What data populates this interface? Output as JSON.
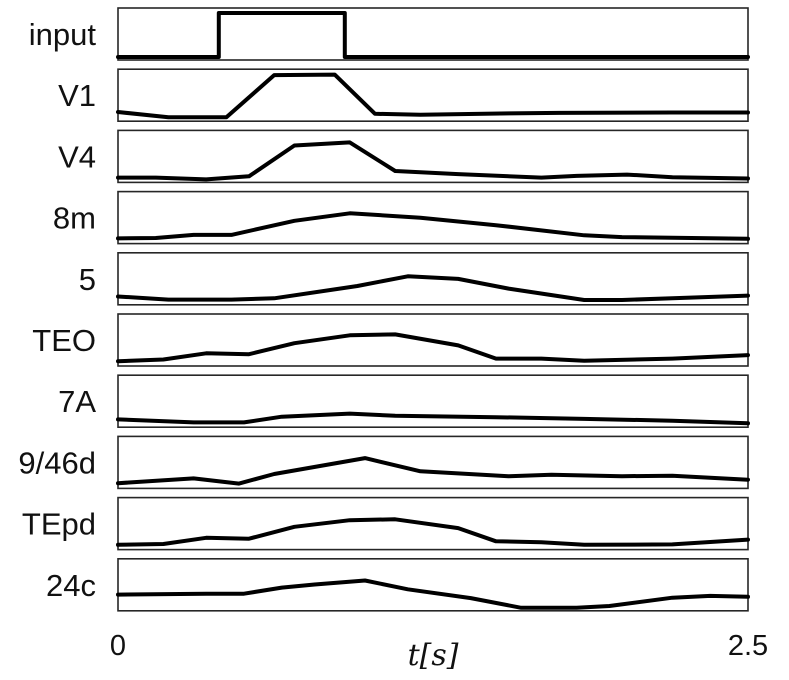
{
  "chart_data": {
    "type": "line",
    "layout": "stacked-small-multiples",
    "xlabel": "t[s]",
    "xlim": [
      0,
      2.5
    ],
    "x_ticks": [
      "0",
      "2.5"
    ],
    "ylim": [
      0,
      1
    ],
    "y_ticks_shown": false,
    "grid": false,
    "legend": "none",
    "line_color": "#000000",
    "series": [
      {
        "name": "input",
        "x": [
          0,
          0.4,
          0.4,
          0.9,
          0.9,
          2.5
        ],
        "values": [
          0,
          0,
          1,
          1,
          0,
          0
        ]
      },
      {
        "name": "V1",
        "x": [
          0,
          0.2,
          0.43,
          0.62,
          0.86,
          1.02,
          1.2,
          1.55,
          1.75,
          2.2,
          2.5
        ],
        "values": [
          0.14,
          0.02,
          0.02,
          0.98,
          0.99,
          0.1,
          0.08,
          0.11,
          0.12,
          0.13,
          0.13
        ]
      },
      {
        "name": "V4",
        "x": [
          0,
          0.15,
          0.35,
          0.52,
          0.7,
          0.92,
          1.1,
          1.35,
          1.68,
          1.82,
          2.02,
          2.2,
          2.5
        ],
        "values": [
          0.04,
          0.04,
          0.0,
          0.07,
          0.77,
          0.84,
          0.19,
          0.12,
          0.04,
          0.08,
          0.11,
          0.05,
          0.02
        ]
      },
      {
        "name": "8m",
        "x": [
          0,
          0.15,
          0.3,
          0.45,
          0.7,
          0.92,
          1.2,
          1.5,
          1.85,
          2.0,
          2.5
        ],
        "values": [
          0.05,
          0.06,
          0.13,
          0.13,
          0.45,
          0.62,
          0.52,
          0.35,
          0.12,
          0.08,
          0.04
        ]
      },
      {
        "name": "5",
        "x": [
          0,
          0.2,
          0.45,
          0.62,
          0.95,
          1.15,
          1.35,
          1.55,
          1.85,
          2.0,
          2.2,
          2.5
        ],
        "values": [
          0.12,
          0.05,
          0.05,
          0.08,
          0.36,
          0.58,
          0.52,
          0.3,
          0.04,
          0.04,
          0.08,
          0.14
        ]
      },
      {
        "name": "TEO",
        "x": [
          0,
          0.18,
          0.35,
          0.52,
          0.7,
          0.92,
          1.1,
          1.35,
          1.5,
          1.68,
          1.85,
          2.2,
          2.5
        ],
        "values": [
          0.04,
          0.08,
          0.22,
          0.2,
          0.45,
          0.63,
          0.65,
          0.4,
          0.1,
          0.1,
          0.05,
          0.1,
          0.18
        ]
      },
      {
        "name": "7A",
        "x": [
          0,
          0.3,
          0.5,
          0.65,
          0.92,
          1.1,
          1.5,
          1.85,
          2.2,
          2.5
        ],
        "values": [
          0.11,
          0.04,
          0.04,
          0.17,
          0.24,
          0.19,
          0.16,
          0.12,
          0.08,
          0.02
        ]
      },
      {
        "name": "9/46d",
        "x": [
          0,
          0.3,
          0.48,
          0.62,
          0.98,
          1.2,
          1.55,
          1.72,
          2.0,
          2.2,
          2.5
        ],
        "values": [
          0.05,
          0.16,
          0.04,
          0.26,
          0.62,
          0.32,
          0.21,
          0.24,
          0.21,
          0.22,
          0.13
        ]
      },
      {
        "name": "TEpd",
        "x": [
          0,
          0.18,
          0.35,
          0.52,
          0.7,
          0.92,
          1.1,
          1.35,
          1.5,
          1.68,
          1.85,
          2.2,
          2.5
        ],
        "values": [
          0.04,
          0.06,
          0.2,
          0.18,
          0.45,
          0.6,
          0.62,
          0.42,
          0.12,
          0.1,
          0.04,
          0.05,
          0.16
        ]
      },
      {
        "name": "24c",
        "x": [
          0,
          0.35,
          0.5,
          0.65,
          0.78,
          0.98,
          1.15,
          1.4,
          1.6,
          1.82,
          1.95,
          2.2,
          2.35,
          2.5
        ],
        "values": [
          0.3,
          0.32,
          0.32,
          0.46,
          0.53,
          0.62,
          0.42,
          0.22,
          0.0,
          0.0,
          0.04,
          0.23,
          0.27,
          0.25
        ]
      }
    ]
  }
}
